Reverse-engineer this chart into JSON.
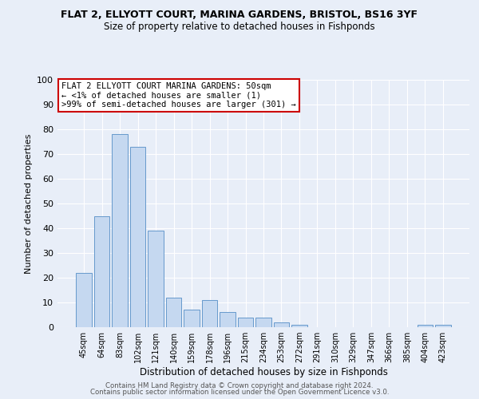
{
  "title1": "FLAT 2, ELLYOTT COURT, MARINA GARDENS, BRISTOL, BS16 3YF",
  "title2": "Size of property relative to detached houses in Fishponds",
  "xlabel": "Distribution of detached houses by size in Fishponds",
  "ylabel": "Number of detached properties",
  "categories": [
    "45sqm",
    "64sqm",
    "83sqm",
    "102sqm",
    "121sqm",
    "140sqm",
    "159sqm",
    "178sqm",
    "196sqm",
    "215sqm",
    "234sqm",
    "253sqm",
    "272sqm",
    "291sqm",
    "310sqm",
    "329sqm",
    "347sqm",
    "366sqm",
    "385sqm",
    "404sqm",
    "423sqm"
  ],
  "values": [
    22,
    45,
    78,
    73,
    39,
    12,
    7,
    11,
    6,
    4,
    4,
    2,
    1,
    0,
    0,
    0,
    0,
    0,
    0,
    1,
    1
  ],
  "bar_color": "#c5d8f0",
  "bar_edge_color": "#6699cc",
  "annotation_line1": "FLAT 2 ELLYOTT COURT MARINA GARDENS: 50sqm",
  "annotation_line2": "← <1% of detached houses are smaller (1)",
  "annotation_line3": ">99% of semi-detached houses are larger (301) →",
  "annotation_box_color": "#ffffff",
  "annotation_border_color": "#cc0000",
  "footer1": "Contains HM Land Registry data © Crown copyright and database right 2024.",
  "footer2": "Contains public sector information licensed under the Open Government Licence v3.0.",
  "ylim": [
    0,
    100
  ],
  "bg_color": "#e8eef8",
  "grid_color": "#ffffff"
}
